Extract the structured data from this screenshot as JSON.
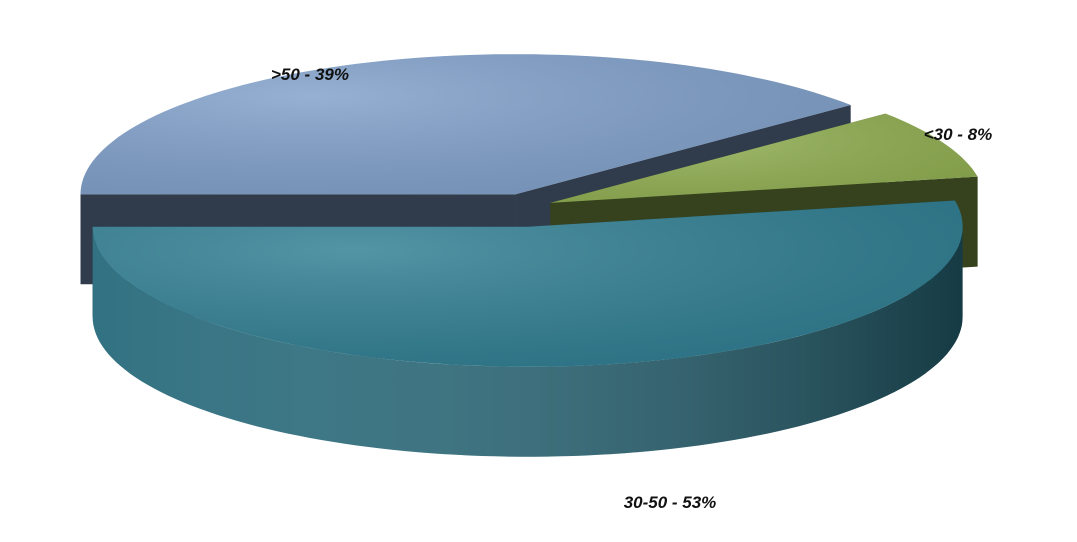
{
  "chart_data": {
    "type": "pie",
    "value_labels": [
      ">50 - 39%",
      "<30 - 8%",
      "30-50 - 53%"
    ],
    "values": [
      39,
      8,
      53
    ],
    "colors": [
      "#7f9fc9",
      "#8fad50",
      "#2e7d91"
    ]
  }
}
